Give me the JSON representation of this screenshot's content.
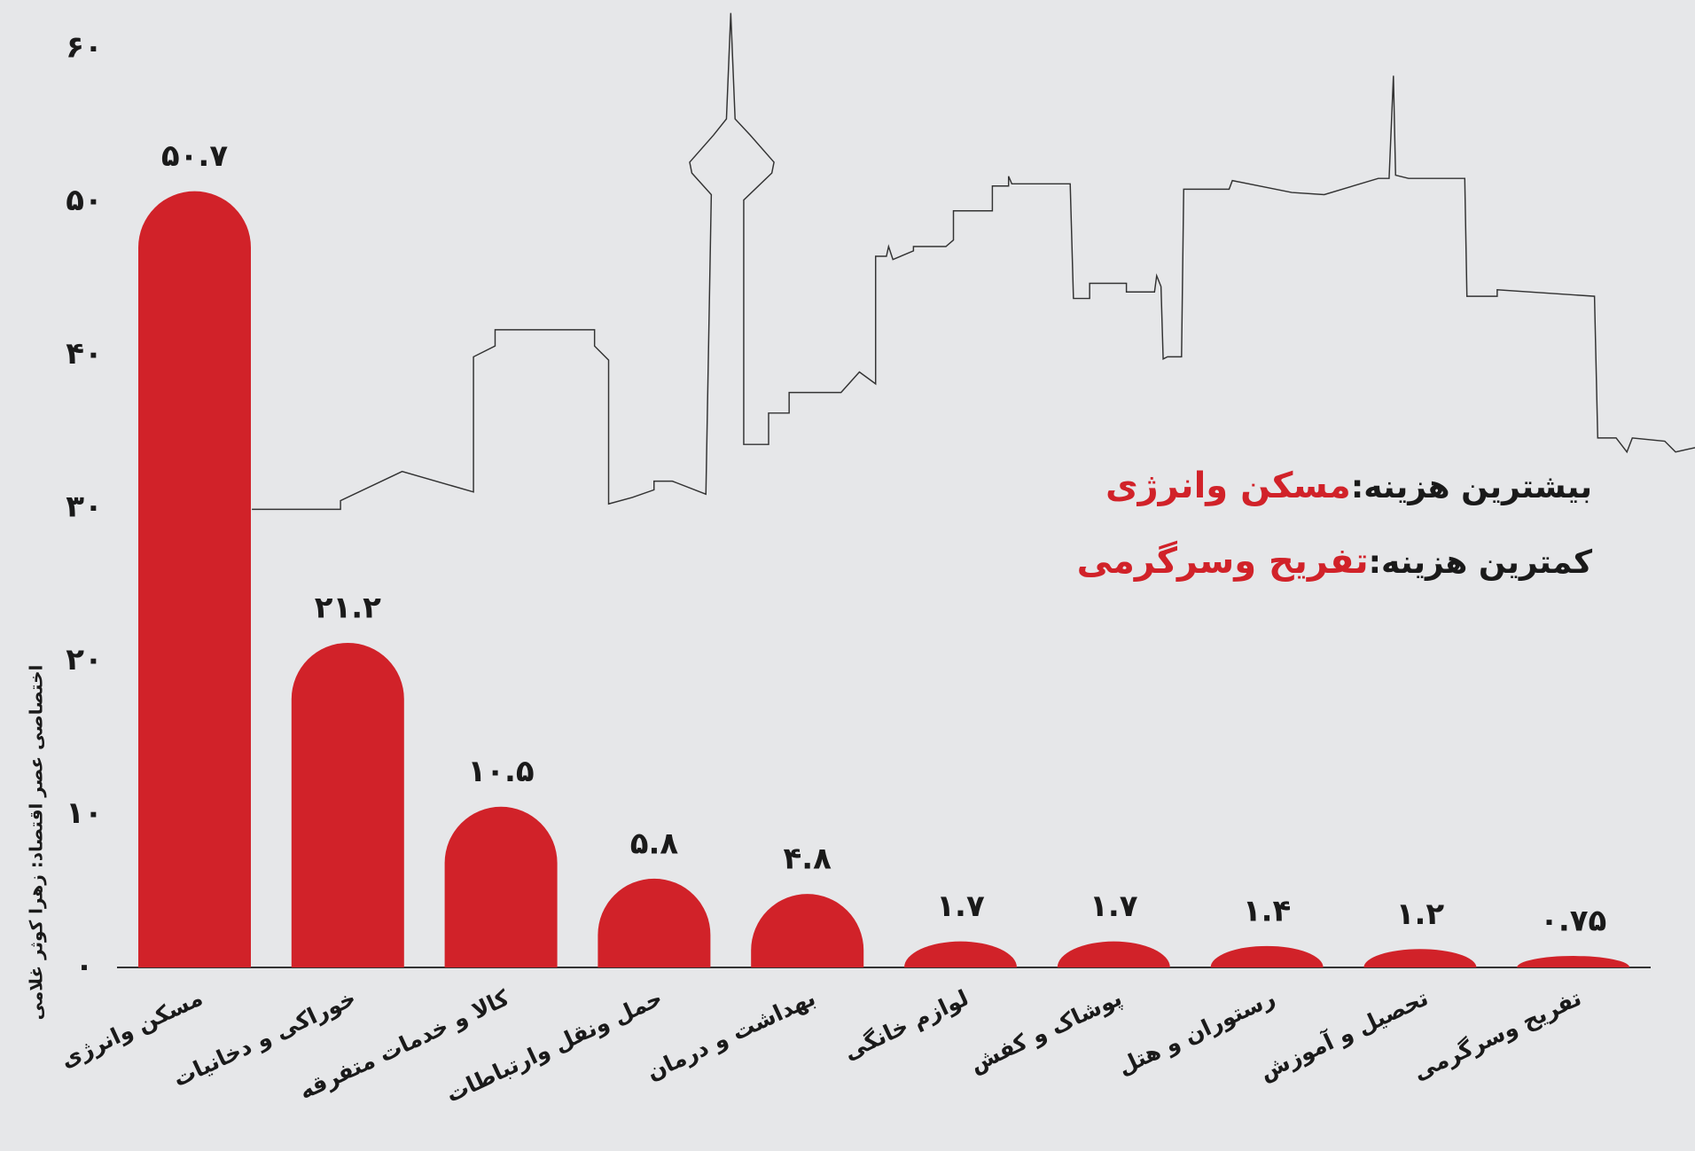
{
  "chart_data": {
    "type": "bar",
    "categories": [
      "مسکن وانرژی",
      "خوراکی و دخانیات",
      "کالا و خدمات متفرقه",
      "حمل ونقل وارتباطات",
      "بهداشت و درمان",
      "لوازم خانگی",
      "پوشاک و کفش",
      "رستوران و هتل",
      "تحصیل و آموزش",
      "تفریح وسرگرمی"
    ],
    "values": [
      50.7,
      21.2,
      10.5,
      5.8,
      4.8,
      1.7,
      1.7,
      1.4,
      1.2,
      0.75
    ],
    "value_labels": [
      "۵۰.۷",
      "۲۱.۲",
      "۱۰.۵",
      "۵.۸",
      "۴.۸",
      "۱.۷",
      "۱.۷",
      "۱.۴",
      "۱.۲",
      "۰.۷۵"
    ],
    "color": "#d12229",
    "ylim": [
      0,
      60
    ],
    "yticks": [
      {
        "value": 0,
        "label": "۰"
      },
      {
        "value": 10,
        "label": "۱۰"
      },
      {
        "value": 20,
        "label": "۲۰"
      },
      {
        "value": 30,
        "label": "۳۰"
      },
      {
        "value": 40,
        "label": "۴۰"
      },
      {
        "value": 50,
        "label": "۵۰"
      },
      {
        "value": 60,
        "label": "۶۰"
      }
    ],
    "grid": false,
    "annotations": [
      {
        "label": "بیشترین هزینه:",
        "highlight": "مسکن وانرژی"
      },
      {
        "label": "کمترین هزینه:",
        "highlight": "تفریح وسرگرمی"
      }
    ],
    "credit": "اختصاصی عصر اقتصاد: زهرا کوثر غلامی"
  }
}
